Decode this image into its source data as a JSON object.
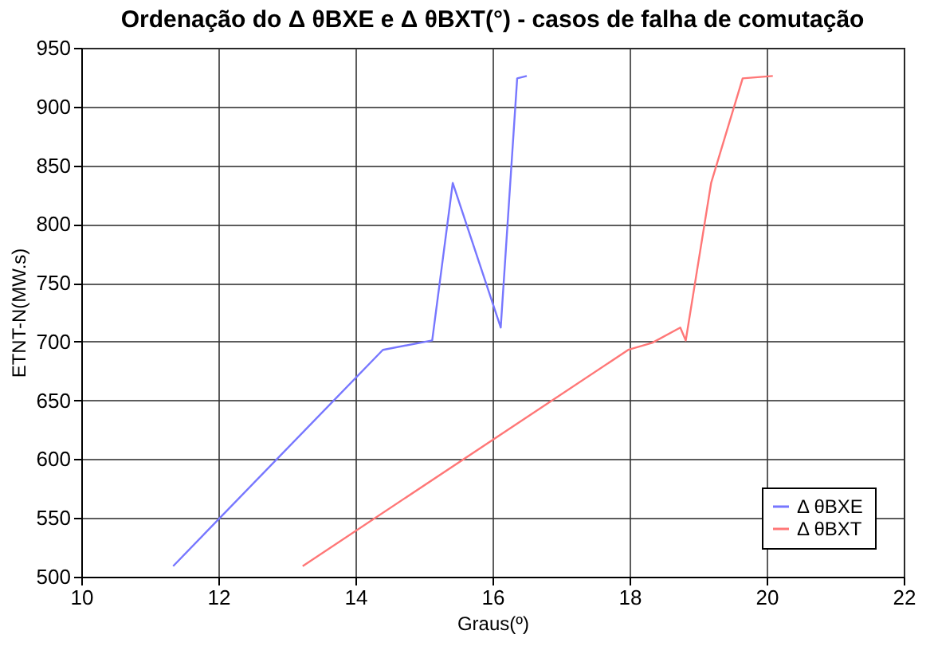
{
  "chart_data": {
    "type": "line",
    "title": "Ordenação do Δ θBXE e Δ θBXT(°)  - casos de falha de comutação",
    "xlabel": "Graus(º)",
    "ylabel": "ETNT-N(MW.s)",
    "series": [
      {
        "name": "Δ θBXE",
        "color": "#7777ff",
        "x": [
          11.34,
          14.4,
          15.12,
          15.42,
          16.12,
          16.36,
          16.5
        ],
        "values": [
          509,
          693,
          701,
          835,
          712,
          924,
          926
        ]
      },
      {
        "name": "Δ θBXT",
        "color": "#ff7777",
        "x": [
          13.23,
          17.98,
          18.33,
          18.74,
          18.82,
          19.19,
          19.65,
          20.09
        ],
        "values": [
          509,
          693,
          699,
          712,
          701,
          835,
          924,
          926
        ]
      }
    ],
    "xlim": [
      10,
      22
    ],
    "xticks": [
      10,
      12,
      14,
      16,
      18,
      20,
      22
    ],
    "ylim": [
      500,
      950
    ],
    "yticks": [
      500,
      550,
      600,
      650,
      700,
      750,
      800,
      850,
      900,
      950
    ],
    "grid": true,
    "legend": "bottom right",
    "marker": "none",
    "line_style": "solid"
  }
}
